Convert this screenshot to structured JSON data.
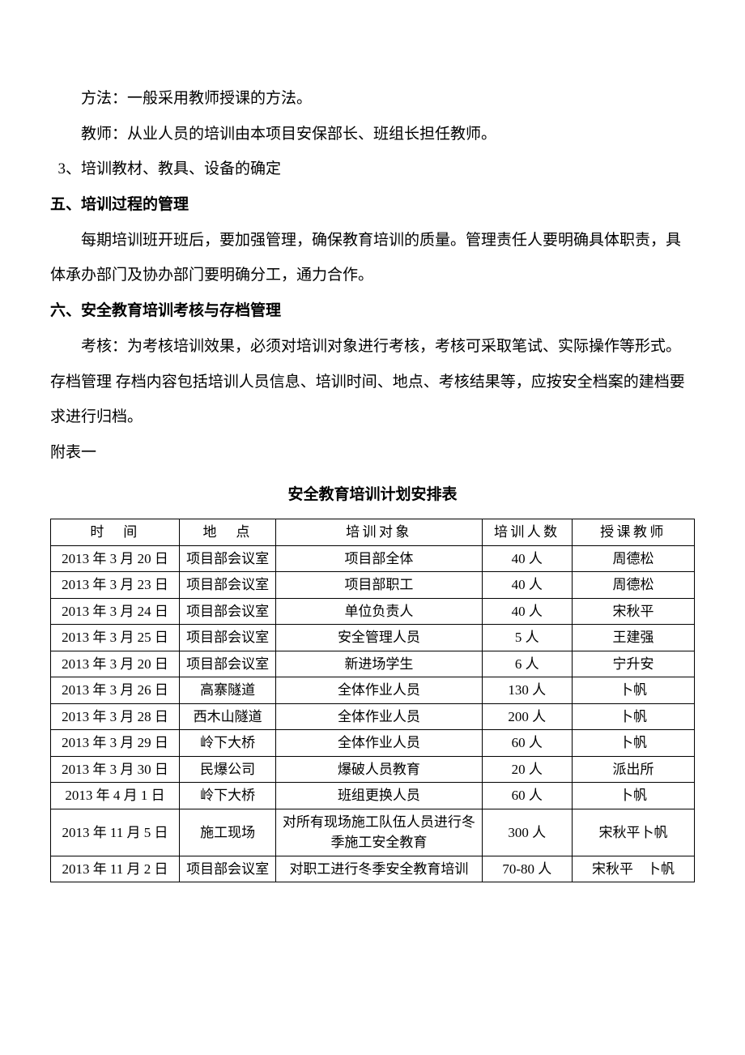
{
  "paragraphs": {
    "p1": "方法：一般采用教师授课的方法。",
    "p2": "教师：从业人员的培训由本项目安保部长、班组长担任教师。",
    "p3": "3、培训教材、教具、设备的确定",
    "h5": "五、培训过程的管理",
    "p4": "每期培训班开班后，要加强管理，确保教育培训的质量。管理责任人要明确具体职责，具体承办部门及协办部门要明确分工，通力合作。",
    "h6": "六、安全教育培训考核与存档管理",
    "p5": "考核：为考核培训效果，必须对培训对象进行考核，考核可采取笔试、实际操作等形式。存档管理 存档内容包括培训人员信息、培训时间、地点、考核结果等，应按安全档案的建档要求进行归档。",
    "appendix": "附表一",
    "tableTitle": "安全教育培训计划安排表"
  },
  "table": {
    "headers": {
      "time": "时　间",
      "place": "地　点",
      "target": "培训对象",
      "count": "培训人数",
      "teacher": "授课教师"
    },
    "rows": [
      {
        "time": "2013 年 3 月 20 日",
        "place": "项目部会议室",
        "target": "项目部全体",
        "count": "40 人",
        "teacher": "周德松"
      },
      {
        "time": "2013 年 3 月 23 日",
        "place": "项目部会议室",
        "target": "项目部职工",
        "count": "40 人",
        "teacher": "周德松"
      },
      {
        "time": "2013 年 3 月 24 日",
        "place": "项目部会议室",
        "target": "单位负责人",
        "count": "40 人",
        "teacher": "宋秋平"
      },
      {
        "time": "2013 年 3 月 25 日",
        "place": "项目部会议室",
        "target": "安全管理人员",
        "count": "5 人",
        "teacher": "王建强"
      },
      {
        "time": "2013 年 3 月 20 日",
        "place": "项目部会议室",
        "target": "新进场学生",
        "count": "6 人",
        "teacher": "宁升安"
      },
      {
        "time": "2013 年 3 月 26 日",
        "place": "高寨隧道",
        "target": "全体作业人员",
        "count": "130 人",
        "teacher": "卜帆"
      },
      {
        "time": "2013 年 3 月 28 日",
        "place": "西木山隧道",
        "target": "全体作业人员",
        "count": "200 人",
        "teacher": "卜帆"
      },
      {
        "time": "2013 年 3 月 29 日",
        "place": "岭下大桥",
        "target": "全体作业人员",
        "count": "60 人",
        "teacher": "卜帆"
      },
      {
        "time": "2013 年 3 月 30 日",
        "place": "民爆公司",
        "target": "爆破人员教育",
        "count": "20 人",
        "teacher": "派出所"
      },
      {
        "time": "2013 年 4 月 1 日",
        "place": "岭下大桥",
        "target": "班组更换人员",
        "count": "60 人",
        "teacher": "卜帆"
      },
      {
        "time": "2013 年 11 月 5 日",
        "place": "施工现场",
        "target": "对所有现场施工队伍人员进行冬季施工安全教育",
        "targetAlign": "left",
        "count": "300 人",
        "teacher": "宋秋平卜帆"
      },
      {
        "time": "2013 年 11 月 2 日",
        "place": "项目部会议室",
        "target": "对职工进行冬季安全教育培训",
        "count": "70-80 人",
        "teacher": "宋秋平　卜帆"
      }
    ]
  },
  "styles": {
    "background_color": "#ffffff",
    "text_color": "#000000",
    "border_color": "#000000",
    "body_fontsize": 19,
    "table_fontsize": 17
  }
}
